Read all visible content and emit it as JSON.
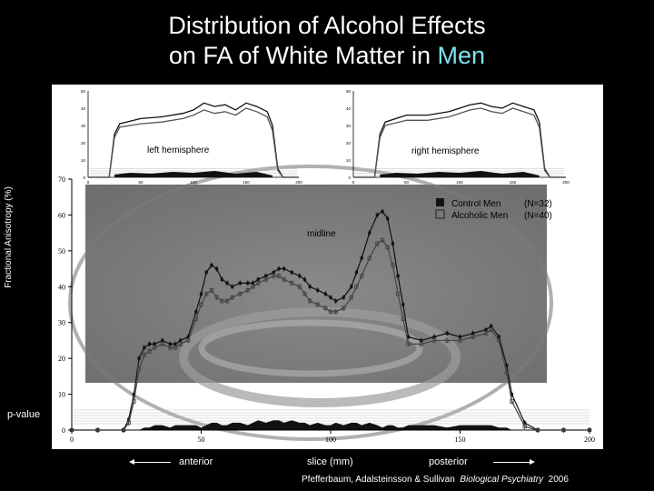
{
  "slide": {
    "title_line1": "Distribution of Alcohol Effects",
    "title_line2_prefix": "on FA of White Matter in ",
    "title_line2_accent": "Men",
    "accent_color": "#7fe3ee",
    "ylabel": "Fractional Anisotropy (%)",
    "pvalue_label": "p-value",
    "anterior_label": "anterior",
    "xlabel": "slice (mm)",
    "posterior_label": "posterior",
    "citation_authors": "Pfefferbaum, Adalsteinsson & Sullivan",
    "citation_journal": "Biological Psychiatry",
    "citation_year": "2006"
  },
  "chart_data": [
    {
      "type": "line",
      "panel": "main",
      "annotation": "midline",
      "x": [
        0,
        10,
        20,
        22,
        24,
        26,
        28,
        30,
        32,
        35,
        38,
        40,
        42,
        45,
        48,
        50,
        52,
        54,
        56,
        58,
        60,
        62,
        65,
        68,
        70,
        72,
        75,
        78,
        80,
        82,
        85,
        88,
        90,
        92,
        95,
        98,
        100,
        102,
        105,
        108,
        110,
        112,
        115,
        118,
        120,
        122,
        124,
        126,
        128,
        130,
        135,
        140,
        145,
        150,
        155,
        160,
        162,
        165,
        168,
        170,
        175,
        180,
        190,
        200
      ],
      "series": [
        {
          "name": "Control Men",
          "legend_suffix": "(N=32)",
          "marker": "filled-square",
          "color": "#111111",
          "values": [
            0,
            0,
            0,
            3,
            10,
            20,
            23,
            24,
            24,
            25,
            24,
            24,
            25,
            26,
            33,
            38,
            44,
            46,
            45,
            42,
            41,
            40,
            41,
            41,
            41,
            42,
            43,
            44,
            45,
            45,
            44,
            43,
            42,
            40,
            39,
            38,
            37,
            36,
            37,
            40,
            44,
            48,
            55,
            60,
            61,
            59,
            52,
            43,
            35,
            26,
            25,
            26,
            27,
            26,
            27,
            28,
            29,
            26,
            18,
            10,
            2,
            0,
            0,
            0
          ]
        },
        {
          "name": "Alcoholic Men",
          "legend_suffix": "(N=40)",
          "marker": "open-square",
          "color": "#444444",
          "values": [
            0,
            0,
            0,
            2,
            8,
            17,
            21,
            22,
            23,
            24,
            23,
            23,
            24,
            25,
            31,
            35,
            38,
            39,
            37,
            36,
            36,
            37,
            38,
            39,
            40,
            41,
            42,
            43,
            43,
            42,
            41,
            40,
            38,
            36,
            35,
            34,
            33,
            33,
            34,
            37,
            40,
            43,
            48,
            52,
            53,
            51,
            46,
            38,
            31,
            24,
            24,
            25,
            25,
            25,
            26,
            27,
            28,
            25,
            16,
            8,
            1,
            0,
            0,
            0
          ]
        }
      ],
      "xlim": [
        0,
        200
      ],
      "ylim": [
        0,
        70
      ],
      "xticks": [
        0,
        50,
        100,
        150,
        200
      ],
      "yticks": [
        0,
        10,
        20,
        30,
        40,
        50,
        60,
        70
      ],
      "pvalue_profile": [
        0,
        0,
        0,
        0,
        0,
        0,
        1,
        1,
        2,
        2,
        1,
        2,
        2,
        2,
        2,
        1,
        2,
        3,
        3,
        2,
        2,
        3,
        3,
        2,
        3,
        4,
        3,
        4,
        4,
        3,
        4,
        3,
        3,
        2,
        3,
        2,
        2,
        3,
        2,
        3,
        3,
        2,
        3,
        2,
        1,
        2,
        2,
        1,
        1,
        2,
        2,
        2,
        1,
        2,
        2,
        2,
        2,
        1,
        1,
        0,
        0,
        0,
        0,
        0
      ],
      "legend_position": "top-right"
    },
    {
      "type": "line",
      "panel": "inset-left",
      "annotation": "left hemisphere",
      "x": [
        0,
        20,
        25,
        30,
        50,
        70,
        90,
        100,
        110,
        120,
        130,
        140,
        150,
        160,
        170,
        175,
        180,
        185,
        200
      ],
      "series": [
        {
          "name": "Control Men",
          "values": [
            0,
            0,
            25,
            31,
            34,
            35,
            37,
            39,
            43,
            41,
            42,
            39,
            43,
            41,
            38,
            30,
            5,
            0,
            0
          ]
        },
        {
          "name": "Alcoholic Men",
          "values": [
            0,
            0,
            23,
            29,
            31,
            32,
            34,
            36,
            39,
            37,
            38,
            36,
            40,
            38,
            35,
            27,
            4,
            0,
            0
          ]
        }
      ],
      "xlim": [
        0,
        200
      ],
      "ylim": [
        0,
        50
      ],
      "xticks": [
        0,
        50,
        100,
        150,
        200
      ],
      "yticks": [
        0,
        10,
        20,
        30,
        40,
        50
      ]
    },
    {
      "type": "line",
      "panel": "inset-right",
      "annotation": "right hemisphere",
      "x": [
        0,
        20,
        25,
        30,
        50,
        70,
        90,
        100,
        110,
        120,
        130,
        140,
        150,
        160,
        170,
        175,
        180,
        185,
        200
      ],
      "series": [
        {
          "name": "Control Men",
          "values": [
            0,
            0,
            25,
            32,
            36,
            36,
            38,
            40,
            42,
            43,
            41,
            40,
            43,
            41,
            39,
            32,
            5,
            0,
            0
          ]
        },
        {
          "name": "Alcoholic Men",
          "values": [
            0,
            0,
            23,
            30,
            33,
            33,
            35,
            37,
            39,
            40,
            38,
            37,
            40,
            38,
            36,
            29,
            4,
            0,
            0
          ]
        }
      ],
      "xlim": [
        0,
        200
      ],
      "ylim": [
        0,
        50
      ],
      "xticks": [
        0,
        50,
        100,
        150,
        200
      ],
      "yticks": [
        0,
        10,
        20,
        30,
        40,
        50
      ]
    }
  ]
}
